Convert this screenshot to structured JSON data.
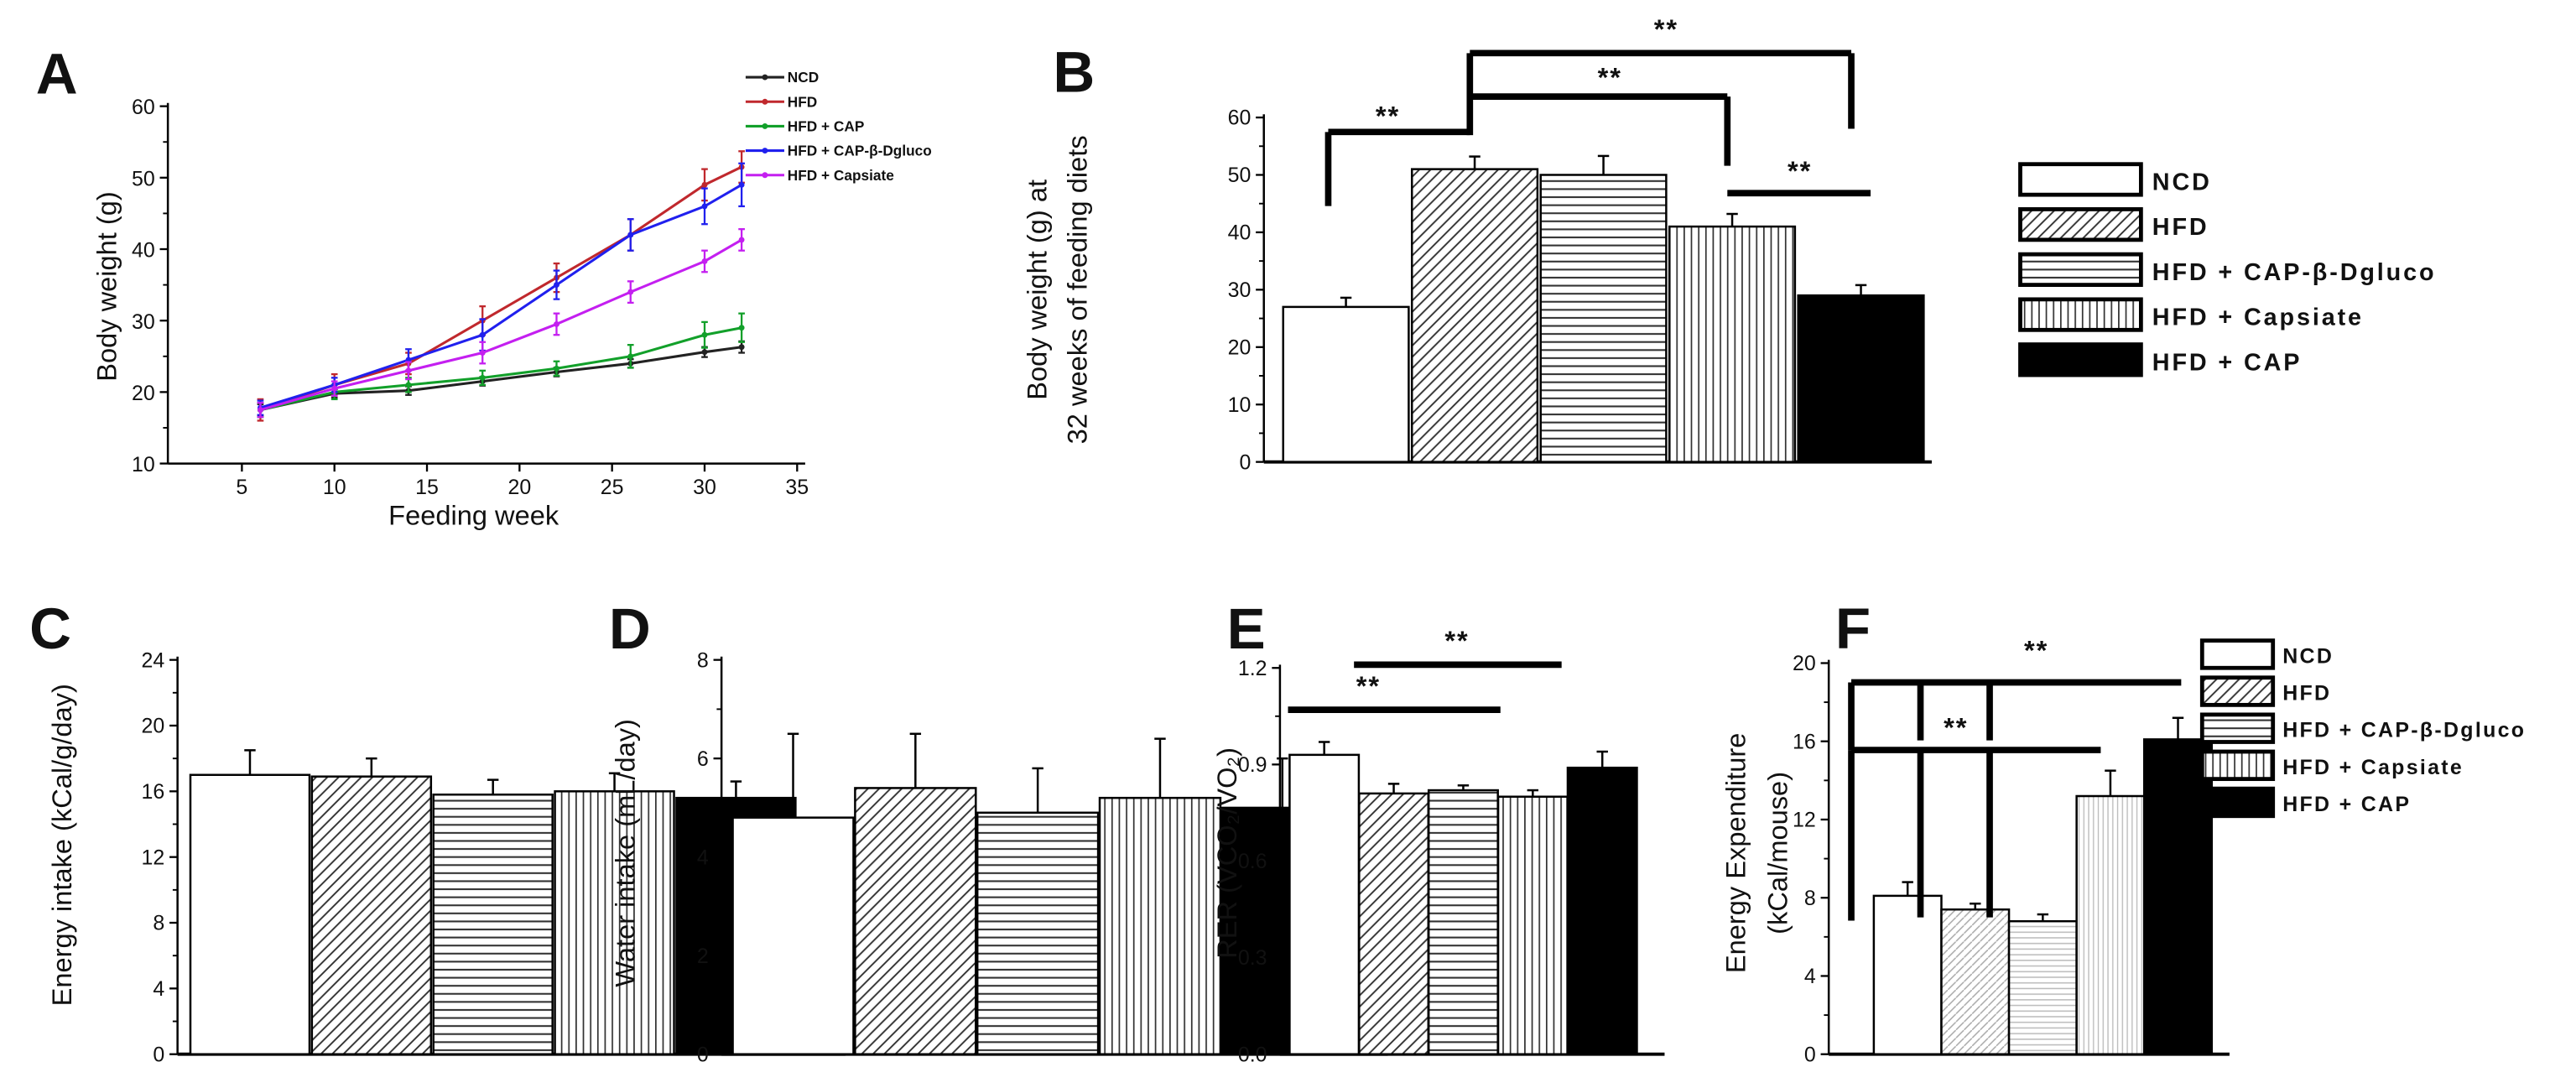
{
  "chart_data": [
    {
      "panel": "A",
      "type": "line",
      "xlabel": "Feeding week",
      "ylabel": [
        "Body weight (g)"
      ],
      "xlim": [
        1,
        35
      ],
      "ylim": [
        10,
        60
      ],
      "xticks": [
        "5",
        "10",
        "15",
        "20",
        "25",
        "30",
        "35"
      ],
      "yticks": [
        "10",
        "20",
        "30",
        "40",
        "50",
        "60"
      ],
      "x": [
        6,
        10,
        14,
        18,
        22,
        26,
        30,
        32
      ],
      "series": [
        {
          "name": "NCD",
          "color": "#222222",
          "values": [
            17.5,
            19.8,
            20.2,
            21.5,
            22.8,
            24.0,
            25.6,
            26.3
          ],
          "errors": [
            0.8,
            0.6,
            0.6,
            0.6,
            0.6,
            0.6,
            0.7,
            0.8
          ]
        },
        {
          "name": "HFD",
          "color": "#c0282d",
          "values": [
            17.5,
            21.0,
            24.0,
            30.0,
            36.0,
            42.0,
            49.0,
            51.5
          ],
          "errors": [
            1.5,
            1.5,
            1.5,
            2.0,
            2.0,
            2.2,
            2.2,
            2.2
          ]
        },
        {
          "name": "HFD + CAP",
          "color": "#12a02a",
          "values": [
            17.5,
            20.0,
            21.0,
            22.0,
            23.3,
            25.0,
            28.0,
            29.0
          ],
          "errors": [
            1.0,
            1.0,
            1.0,
            1.0,
            1.0,
            1.6,
            1.8,
            2.0
          ]
        },
        {
          "name": "HFD + CAP-β-Dgluco",
          "color": "#2020ee",
          "values": [
            17.8,
            21.0,
            24.5,
            28.0,
            35.0,
            42.0,
            46.0,
            49.0
          ],
          "errors": [
            1.0,
            1.0,
            1.5,
            2.2,
            2.0,
            2.2,
            2.5,
            3.0
          ]
        },
        {
          "name": "HFD + Capsiate",
          "color": "#c41ff0",
          "values": [
            17.5,
            20.5,
            23.0,
            25.5,
            29.5,
            34.0,
            38.3,
            41.3
          ],
          "errors": [
            1.0,
            1.0,
            1.2,
            1.5,
            1.5,
            1.5,
            1.5,
            1.5
          ]
        }
      ]
    },
    {
      "panel": "B",
      "type": "bar",
      "ylabel": [
        "Body weight (g) at",
        "32 weeks of feeding diets"
      ],
      "ylim": [
        0,
        60
      ],
      "yticks": [
        "0",
        "10",
        "20",
        "30",
        "40",
        "50",
        "60"
      ],
      "categories": [
        "NCD",
        "HFD",
        "HFD + CAP-β-Dgluco",
        "HFD + Capsiate",
        "HFD + CAP"
      ],
      "values": [
        27,
        51,
        50,
        41,
        29
      ],
      "errors": [
        1.6,
        2.2,
        3.3,
        2.2,
        1.8
      ],
      "legend": "right",
      "annotations": [
        "**",
        "**",
        "**",
        "**"
      ]
    },
    {
      "panel": "C",
      "type": "bar",
      "ylabel": [
        "Energy intake (kCal/g/day)"
      ],
      "ylim": [
        0,
        24
      ],
      "yticks": [
        "0",
        "4",
        "8",
        "12",
        "16",
        "20",
        "24"
      ],
      "categories": [
        "NCD",
        "HFD",
        "HFD + CAP-β-Dgluco",
        "HFD + Capsiate",
        "HFD + CAP"
      ],
      "values": [
        17.0,
        16.9,
        15.8,
        16.0,
        15.6
      ],
      "errors": [
        1.5,
        1.1,
        0.9,
        1.1,
        1.0
      ],
      "annotations": []
    },
    {
      "panel": "D",
      "type": "bar",
      "ylabel": [
        "Water intake (mL/day)"
      ],
      "ylim": [
        0,
        8
      ],
      "yticks": [
        "0",
        "2",
        "4",
        "6",
        "8"
      ],
      "categories": [
        "NCD",
        "HFD",
        "HFD + CAP-β-Dgluco",
        "HFD + Capsiate",
        "HFD + CAP"
      ],
      "values": [
        4.8,
        5.4,
        4.9,
        5.2,
        5.0
      ],
      "errors": [
        1.7,
        1.1,
        0.9,
        1.2,
        1.0
      ],
      "annotations": []
    },
    {
      "panel": "E",
      "type": "bar",
      "ylabel": [
        "RER (VCO₂/VO₂)"
      ],
      "ylim": [
        0,
        1.2
      ],
      "yticks": [
        "0.0",
        "0.3",
        "0.6",
        "0.9",
        "1.2"
      ],
      "categories": [
        "NCD",
        "HFD",
        "HFD + CAP-β-Dgluco",
        "HFD + Capsiate",
        "HFD + CAP"
      ],
      "values": [
        0.93,
        0.81,
        0.82,
        0.8,
        0.89
      ],
      "errors": [
        0.04,
        0.03,
        0.015,
        0.02,
        0.05
      ],
      "annotations": [
        "**",
        "**"
      ]
    },
    {
      "panel": "F",
      "type": "bar",
      "ylabel": [
        "Energy Expenditure",
        "(kCal/mouse)"
      ],
      "ylim": [
        0,
        20
      ],
      "yticks": [
        "0",
        "4",
        "8",
        "12",
        "16",
        "20"
      ],
      "categories": [
        "NCD",
        "HFD",
        "HFD + CAP-β-Dgluco",
        "HFD + Capsiate",
        "HFD + CAP"
      ],
      "values": [
        8.1,
        7.4,
        6.8,
        13.2,
        16.1
      ],
      "errors": [
        0.7,
        0.3,
        0.35,
        1.3,
        1.1
      ],
      "legend": "right",
      "annotations": [
        "**",
        "**"
      ]
    }
  ]
}
